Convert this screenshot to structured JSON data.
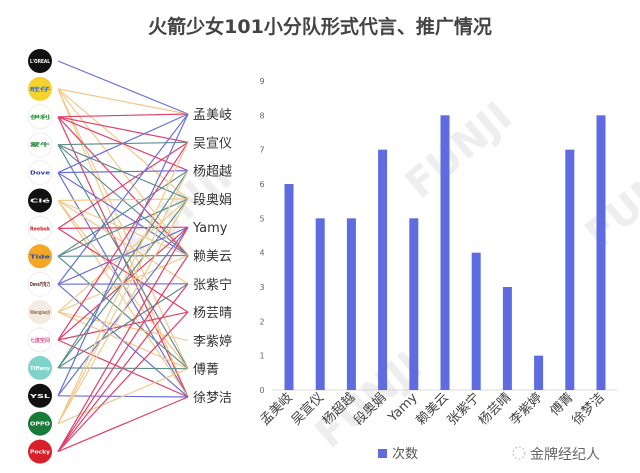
{
  "title": "火箭少女101小分队形式代言、推广情况",
  "watermark": "FUNJI",
  "source_label": "金牌经纪人",
  "brands": [
    {
      "name": "L'OREAL",
      "bg": "#111111",
      "fg": "#ffffff",
      "line_color": "#6b70d6"
    },
    {
      "name": "旺仔",
      "bg": "#f5d22c",
      "fg": "#2a6fd0",
      "line_color": "#f2c98c"
    },
    {
      "name": "伊利",
      "bg": "#ffffff",
      "fg": "#2c9a3a",
      "line_color": "#e0406a"
    },
    {
      "name": "蒙牛",
      "bg": "#ffffff",
      "fg": "#2c8a3a",
      "line_color": "#5e8f8c"
    },
    {
      "name": "Dove",
      "bg": "#ffffff",
      "fg": "#2d3f8a",
      "line_color": "#6b70d6"
    },
    {
      "name": "Clé",
      "bg": "#111111",
      "fg": "#ffffff",
      "line_color": "#f2c98c"
    },
    {
      "name": "Reebok",
      "bg": "#ffffff",
      "fg": "#c8202a",
      "line_color": "#e0406a"
    },
    {
      "name": "Tide",
      "bg": "#f5a623",
      "fg": "#1f4fb3",
      "line_color": "#5e8f8c"
    },
    {
      "name": "Dove巧克力",
      "bg": "#ffffff",
      "fg": "#5a2a1a",
      "line_color": "#6b70d6"
    },
    {
      "name": "Wanglaoji",
      "bg": "#f4ece2",
      "fg": "#a07050",
      "line_color": "#f2c98c"
    },
    {
      "name": "七度空间",
      "bg": "#ffffff",
      "fg": "#e0508a",
      "line_color": "#e0406a"
    },
    {
      "name": "Tiffany",
      "bg": "#7fd3c9",
      "fg": "#ffffff",
      "line_color": "#5e8f8c"
    },
    {
      "name": "YSL",
      "bg": "#111111",
      "fg": "#ffffff",
      "line_color": "#6b70d6"
    },
    {
      "name": "OPPO",
      "bg": "#1a7a3a",
      "fg": "#ffffff",
      "line_color": "#f2c98c"
    },
    {
      "name": "Pocky",
      "bg": "#d8202a",
      "fg": "#ffffff",
      "line_color": "#e0406a"
    }
  ],
  "members": [
    "孟美岐",
    "吴宣仪",
    "杨超越",
    "段奥娟",
    "Yamy",
    "赖美云",
    "张紫宁",
    "杨芸晴",
    "李紫婷",
    "傅菁",
    "徐梦洁"
  ],
  "connections": [
    [
      0
    ],
    [
      0,
      3,
      5,
      9,
      10
    ],
    [
      0,
      1,
      2,
      5,
      10
    ],
    [
      1,
      3,
      5,
      9
    ],
    [
      0,
      2,
      5,
      10
    ],
    [
      3,
      5,
      6,
      9,
      10
    ],
    [
      1,
      4,
      7
    ],
    [
      2,
      3,
      5,
      9
    ],
    [
      0,
      4,
      6,
      10
    ],
    [
      3,
      5,
      8,
      9
    ],
    [
      1,
      4,
      7,
      10
    ],
    [
      2,
      3,
      6,
      9
    ],
    [
      0,
      4,
      10
    ],
    [
      1,
      2,
      3,
      9
    ],
    [
      4,
      5,
      6,
      7,
      10
    ]
  ],
  "chart_data": {
    "type": "bar",
    "categories": [
      "孟美岐",
      "吴宣仪",
      "杨超越",
      "段奥娟",
      "Yamy",
      "赖美云",
      "张紫宁",
      "杨芸晴",
      "李紫婷",
      "傅菁",
      "徐梦洁"
    ],
    "series": [
      {
        "name": "次数",
        "values": [
          6,
          5,
          5,
          7,
          5,
          8,
          4,
          3,
          1,
          7,
          8
        ],
        "color": "#5f6be0"
      }
    ],
    "ylim": [
      0,
      9
    ],
    "yticks": [
      0,
      1,
      2,
      3,
      4,
      5,
      6,
      7,
      8,
      9
    ],
    "grid": false,
    "legend": "bottom"
  }
}
